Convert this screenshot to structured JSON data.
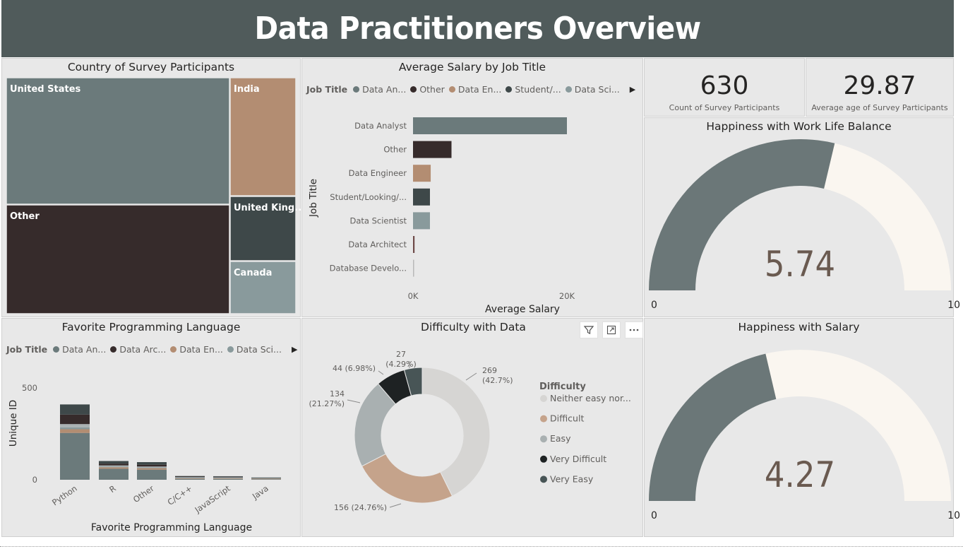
{
  "header": {
    "title": "Data Practitioners Overview"
  },
  "colors": {
    "slate": "#6b7a7b",
    "dark_brown": "#362b2b",
    "tan": "#b38d72",
    "charcoal": "#3e4849",
    "gray_blue": "#899a9c",
    "gauge_fill": "#6b7778",
    "gauge_bg": "#faf6f0",
    "donut_light": "#d6d5d3",
    "donut_tan": "#c5a38b",
    "donut_gray": "#a9b0b1",
    "donut_black": "#1e2223",
    "donut_slate": "#485556"
  },
  "treemap": {
    "title": "Country of Survey Participants",
    "chart_data": {
      "type": "treemap",
      "items": [
        {
          "name": "United States",
          "color": "#6b7a7b"
        },
        {
          "name": "Other",
          "color": "#362b2b"
        },
        {
          "name": "India",
          "color": "#b38d72"
        },
        {
          "name": "United King...",
          "color": "#3e4849"
        },
        {
          "name": "Canada",
          "color": "#899a9c"
        }
      ]
    }
  },
  "salary": {
    "title": "Average Salary by Job Title",
    "legend_title": "Job Title",
    "legend": [
      {
        "name": "Data An...",
        "color": "#6b7a7b"
      },
      {
        "name": "Other",
        "color": "#362b2b"
      },
      {
        "name": "Data En...",
        "color": "#b38d72"
      },
      {
        "name": "Student/...",
        "color": "#3e4849"
      },
      {
        "name": "Data Sci...",
        "color": "#899a9c"
      }
    ],
    "chart_data": {
      "type": "bar",
      "orientation": "horizontal",
      "xlabel": "Average Salary",
      "ylabel": "Job Title",
      "xlim": [
        0,
        20000
      ],
      "xticks": [
        "0K",
        "20K"
      ],
      "categories": [
        "Data Analyst",
        "Other",
        "Data Engineer",
        "Student/Looking/...",
        "Data Scientist",
        "Data Architect",
        "Database Develo..."
      ],
      "values": [
        20000,
        5000,
        2300,
        2200,
        2200,
        200,
        100
      ],
      "colors": [
        "#6b7a7b",
        "#362b2b",
        "#b38d72",
        "#3e4849",
        "#899a9c",
        "#6e4a48",
        "#b9b9b9"
      ]
    }
  },
  "kpi_count": {
    "value": "630",
    "label": "Count of Survey Participants"
  },
  "kpi_age": {
    "value": "29.87",
    "label": "Average age of Survey Participants"
  },
  "gauge_wlb": {
    "title": "Happiness with Work Life Balance",
    "chart_data": {
      "type": "gauge",
      "value": 5.74,
      "min": 0,
      "max": 10
    },
    "value_label": "5.74",
    "min_label": "0",
    "max_label": "10"
  },
  "gauge_salary": {
    "title": "Happiness with Salary",
    "chart_data": {
      "type": "gauge",
      "value": 4.27,
      "min": 0,
      "max": 10
    },
    "value_label": "4.27",
    "min_label": "0",
    "max_label": "10"
  },
  "language": {
    "title": "Favorite Programming Language",
    "legend_title": "Job Title",
    "legend": [
      {
        "name": "Data An...",
        "color": "#6b7a7b"
      },
      {
        "name": "Data Arc...",
        "color": "#362b2b"
      },
      {
        "name": "Data En...",
        "color": "#b38d72"
      },
      {
        "name": "Data Sci...",
        "color": "#899a9c"
      }
    ],
    "chart_data": {
      "type": "bar",
      "stacked": true,
      "xlabel": "Favorite Programming Language",
      "ylabel": "Unique ID",
      "ylim": [
        0,
        500
      ],
      "yticks": [
        "0",
        "500"
      ],
      "categories": [
        "Python",
        "R",
        "Other",
        "C/C++",
        "JavaScript",
        "Java"
      ],
      "series": [
        {
          "values": [
            255,
            60,
            55,
            5,
            4,
            2
          ],
          "color": "#6b7a7b"
        },
        {
          "values": [
            20,
            8,
            8,
            1,
            1,
            1
          ],
          "color": "#b38d72"
        },
        {
          "values": [
            10,
            4,
            4,
            1,
            1,
            1
          ],
          "color": "#899a9c"
        },
        {
          "values": [
            18,
            6,
            5,
            1,
            1,
            0
          ],
          "color": "#aab2b3"
        },
        {
          "values": [
            52,
            10,
            10,
            1,
            1,
            0
          ],
          "color": "#362b2b"
        },
        {
          "values": [
            55,
            14,
            14,
            2,
            2,
            1
          ],
          "color": "#3e4849"
        }
      ]
    }
  },
  "difficulty": {
    "title": "Difficulty with Data",
    "legend_title": "Difficulty",
    "chart_data": {
      "type": "pie",
      "donut": true,
      "slices": [
        {
          "name": "Neither easy nor...",
          "value": 269,
          "label1": "269",
          "label2": "(42.7%)",
          "color": "#d6d5d3"
        },
        {
          "name": "Difficult",
          "value": 156,
          "label1": "156 (24.76%)",
          "label2": "",
          "color": "#c5a38b"
        },
        {
          "name": "Easy",
          "value": 134,
          "label1": "134",
          "label2": "(21.27%)",
          "color": "#a9b0b1"
        },
        {
          "name": "Very Difficult",
          "value": 44,
          "label1": "44 (6.98%)",
          "label2": "",
          "color": "#1e2223"
        },
        {
          "name": "Very Easy",
          "value": 27,
          "label1": "27",
          "label2": "(4.29%)",
          "color": "#485556"
        }
      ]
    },
    "toolbar": {
      "filter_icon": "filter-icon",
      "focus_icon": "focus-mode-icon",
      "more_icon": "more-options-icon"
    }
  }
}
